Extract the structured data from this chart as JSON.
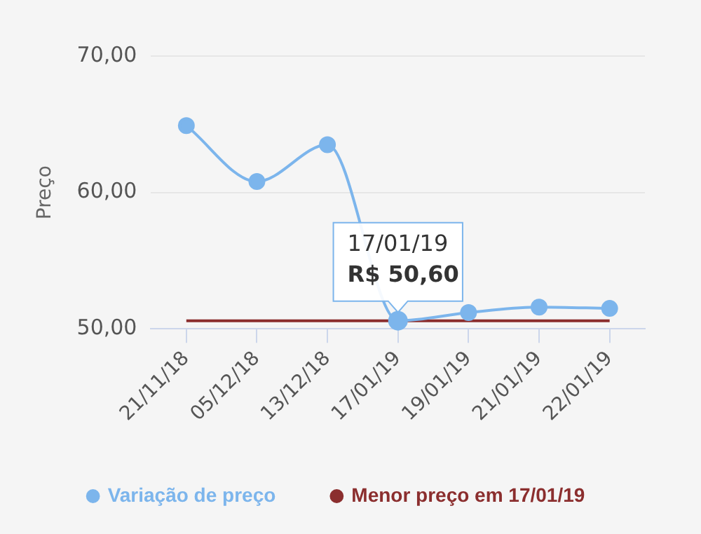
{
  "chart_data": {
    "type": "line",
    "ylabel": "Preço",
    "categories": [
      "21/11/18",
      "05/12/18",
      "13/12/18",
      "17/01/19",
      "19/01/19",
      "21/01/19",
      "22/01/19"
    ],
    "series": [
      {
        "name": "Variação de preço",
        "color": "#7cb5ec",
        "values": [
          64.9,
          60.8,
          63.5,
          50.6,
          51.2,
          51.6,
          51.5
        ]
      }
    ],
    "ylim": [
      50,
      70
    ],
    "yticks": [
      {
        "value": 50,
        "label": "50,00"
      },
      {
        "value": 60,
        "label": "60,00"
      },
      {
        "value": 70,
        "label": "70,00"
      }
    ],
    "ref_lines": [
      {
        "axis": "y",
        "value": 50.6,
        "label": "Menor preço em 17/01/19",
        "color": "#8b2e2e"
      }
    ],
    "annotations": [
      {
        "text": "17/01/19\nR$ 50,60",
        "x": "17/01/19",
        "y": 50.6
      }
    ],
    "grid": "y",
    "legend": "bottom",
    "marker": "circle",
    "line_style": "solid"
  }
}
